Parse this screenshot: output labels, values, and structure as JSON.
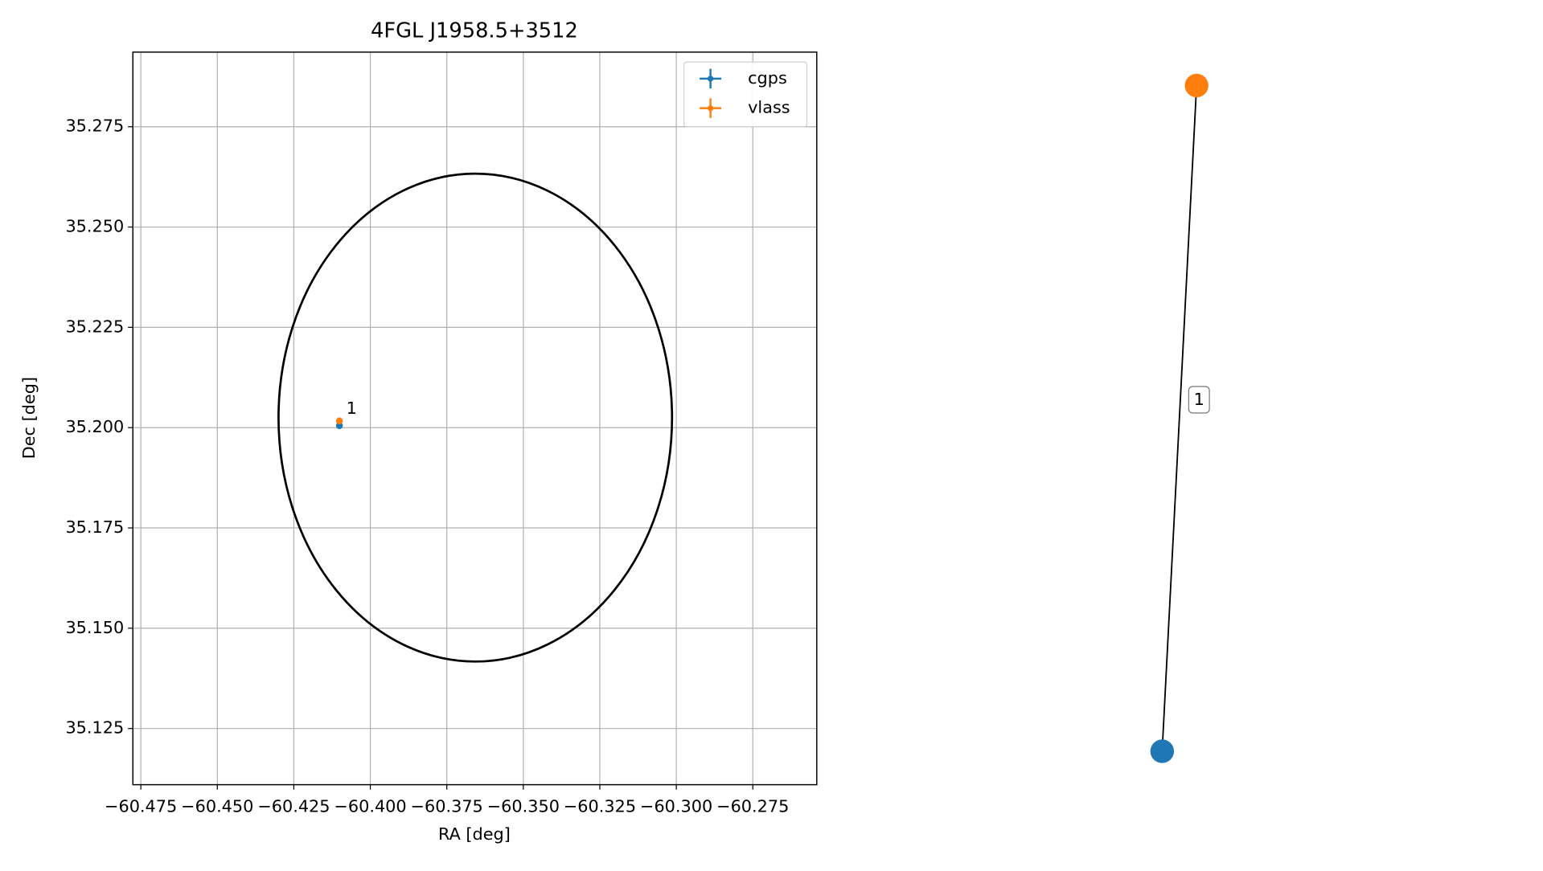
{
  "chart_data": {
    "type": "scatter",
    "title": "4FGL J1958.5+3512",
    "x_label": "RA [deg]",
    "y_label": "Dec [deg]",
    "xlim": [
      -60.4776,
      -60.2541
    ],
    "ylim": [
      35.111,
      35.2936
    ],
    "xticks": [
      {
        "value": -60.475,
        "label": "−60.475"
      },
      {
        "value": -60.45,
        "label": "−60.450"
      },
      {
        "value": -60.425,
        "label": "−60.425"
      },
      {
        "value": -60.4,
        "label": "−60.400"
      },
      {
        "value": -60.375,
        "label": "−60.375"
      },
      {
        "value": -60.35,
        "label": "−60.350"
      },
      {
        "value": -60.325,
        "label": "−60.325"
      },
      {
        "value": -60.3,
        "label": "−60.300"
      },
      {
        "value": -60.275,
        "label": "−60.275"
      }
    ],
    "yticks": [
      35.125,
      {
        "value": 35.15,
        "label": "35.150"
      },
      35.175,
      {
        "value": 35.2,
        "label": "35.200"
      },
      35.225,
      {
        "value": 35.25,
        "label": "35.250"
      },
      35.275
    ],
    "grid": true,
    "legend": "upper right",
    "series": [
      {
        "name": "cgps",
        "color": "#1f77b4",
        "x": [
          -60.4101
        ],
        "values": [
          35.2005
        ]
      },
      {
        "name": "vlass",
        "color": "#ff7f0e",
        "x": [
          -60.4101
        ],
        "values": [
          35.2017
        ]
      }
    ],
    "ellipse": {
      "center_x": -60.3657,
      "center_y": 35.2025,
      "half_width": 0.0643,
      "half_height": 0.0608,
      "color": "#000000"
    },
    "annotations": [
      {
        "text": "1",
        "x": -60.4101,
        "y": 35.2017
      }
    ]
  },
  "graph": {
    "nodes": [
      {
        "color": "#1f77b4"
      },
      {
        "color": "#ff7f0e"
      }
    ],
    "edges": [
      {
        "label": "1"
      }
    ]
  }
}
